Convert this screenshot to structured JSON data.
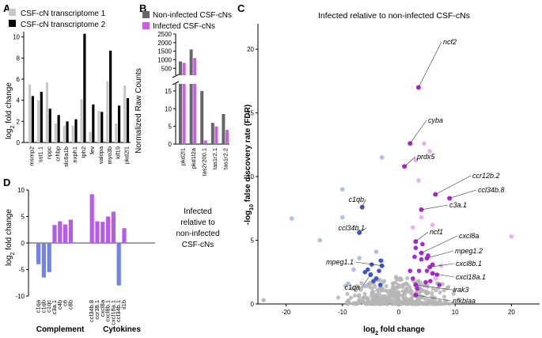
{
  "panels": {
    "A": {
      "letter": "A",
      "ylabel_prefix": "log",
      "ylabel_sub": "2",
      "ylabel_suffix": " fold change",
      "yticks": [
        "0",
        "2",
        "4",
        "6",
        "8",
        "10"
      ],
      "legend": [
        "CSF-cN transcriptome 1",
        "CSF-cN transcriptome 2"
      ],
      "colors": {
        "t1": "#c8c8c8",
        "t2": "#000000"
      }
    },
    "B": {
      "letter": "B",
      "ylabel": "Normalized Raw Counts",
      "yticks_top": [
        "500",
        "1000",
        "1500",
        "2000",
        "2500"
      ],
      "yticks_bottom": [
        "0",
        "5",
        "10",
        "15"
      ],
      "legend": [
        "Non-infected CSF-cNs",
        "Infected CSF-cNs"
      ],
      "colors": {
        "non": "#666666",
        "inf": "#c85fe0"
      }
    },
    "C": {
      "letter": "C",
      "title": "Infected relative to non-infected CSF-cNs",
      "xlabel_prefix": "log",
      "xlabel_sub": "2",
      "xlabel_suffix": " fold change",
      "ylabel_prefix": "-log",
      "ylabel_sub": "10",
      "ylabel_suffix": " false discovery rate (FDR)",
      "xticks": [
        "-20",
        "-10",
        "0",
        "10",
        "20"
      ],
      "yticks": [
        "0",
        "5",
        "10",
        "15",
        "20"
      ],
      "labels": [
        "ncf2",
        "cyba",
        "prdx5",
        "ccr12b.2",
        "ccl34b.8",
        "c1qb",
        "c3a.1",
        "ncf1",
        "ccl34b.1",
        "cxcl8a",
        "mpeg1.2",
        "mpeg1.1",
        "cxcl8b.1",
        "cxcl18a.1",
        "c1qa",
        "irak3",
        "nfkbiaa"
      ],
      "colors": {
        "grey": "#b5b5b5",
        "light_blue": "#aebfee",
        "blue": "#3f56c7",
        "light_purple": "#e6b2f2",
        "purple": "#a829cd"
      }
    },
    "D": {
      "letter": "D",
      "ylabel_prefix": "log",
      "ylabel_sub": "2",
      "ylabel_suffix": " fold change",
      "yticks": [
        "-10",
        "-5",
        "0",
        "5",
        "10"
      ],
      "side_label": [
        "Infected",
        "relative to",
        "non-infected",
        "CSF-cNs"
      ],
      "group_labels": [
        "Complement",
        "Cytokines"
      ],
      "colors": {
        "pos": "#b65de8",
        "neg": "#7283e6"
      }
    }
  },
  "chart_data": [
    {
      "type": "bar",
      "panel": "A",
      "categories": [
        "msmp2",
        "sst1.1",
        "nppc",
        "crhbp",
        "slc6a1b",
        "nxph1",
        "tph2",
        "fev",
        "valopa",
        "myo3b",
        "kif19",
        "pkd2l1"
      ],
      "series": [
        {
          "name": "CSF-cN transcriptome 1",
          "values": [
            5.5,
            4.0,
            5.7,
            1.8,
            1.6,
            1.6,
            4.1,
            1.0,
            3.0,
            5.8,
            1.8,
            5.4
          ]
        },
        {
          "name": "CSF-cN transcriptome 2",
          "values": [
            4.4,
            4.8,
            3.2,
            2.6,
            2.0,
            2.2,
            10.3,
            3.6,
            2.9,
            8.7,
            3.5,
            4.2
          ]
        }
      ],
      "ylim": [
        0,
        10.5
      ]
    },
    {
      "type": "bar",
      "panel": "B",
      "categories": [
        "pkd2l1",
        "pkd1l2a",
        "tas2r200.1",
        "tas1r2.1",
        "tas1r2.2"
      ],
      "series": [
        {
          "name": "Non-infected CSF-cNs",
          "values": [
            900,
            1600,
            15,
            6,
            8.5
          ]
        },
        {
          "name": "Infected CSF-cNs",
          "values": [
            820,
            1100,
            1,
            5,
            4
          ]
        }
      ],
      "y_axis_break": [
        17,
        100
      ],
      "ylim_top": [
        100,
        2500
      ],
      "ylim_bottom": [
        0,
        17
      ]
    },
    {
      "type": "scatter",
      "panel": "C",
      "xlim": [
        -25,
        25
      ],
      "ylim": [
        0,
        22
      ],
      "labeled_points": [
        {
          "label": "ncf2",
          "x": 3.5,
          "y": 17.0
        },
        {
          "label": "cyba",
          "x": 2.0,
          "y": 12.6
        },
        {
          "label": "prdx5",
          "x": 1.0,
          "y": 10.8
        },
        {
          "label": "ccr12b.2",
          "x": 6.5,
          "y": 8.6
        },
        {
          "label": "ccl34b.8",
          "x": 9.0,
          "y": 8.3
        },
        {
          "label": "c1qb",
          "x": -6.5,
          "y": 7.6
        },
        {
          "label": "c3a.1",
          "x": 4.0,
          "y": 7.4
        },
        {
          "label": "ncf1",
          "x": 3.0,
          "y": 4.9
        },
        {
          "label": "ccl34b.1",
          "x": -7.0,
          "y": 5.6
        },
        {
          "label": "cxcl8a",
          "x": 4.0,
          "y": 4.0
        },
        {
          "label": "mpeg1.2",
          "x": 5.0,
          "y": 3.6
        },
        {
          "label": "mpeg1.1",
          "x": -3.0,
          "y": 3.0
        },
        {
          "label": "cxcl8b.1",
          "x": 5.5,
          "y": 2.9
        },
        {
          "label": "cxcl18a.1",
          "x": 6.0,
          "y": 2.4
        },
        {
          "label": "c1qa",
          "x": -5.0,
          "y": 2.3
        },
        {
          "label": "irak3",
          "x": 3.0,
          "y": 1.5
        },
        {
          "label": "nfkbiaa",
          "x": 3.0,
          "y": 0.7
        }
      ],
      "other_points": {
        "light_blue": [
          [
            -19,
            6.7
          ],
          [
            -14,
            5.0
          ],
          [
            -10,
            6.8
          ],
          [
            -8,
            2.7
          ],
          [
            -7,
            3.6
          ],
          [
            -4,
            4.1
          ],
          [
            -3,
            3.4
          ],
          [
            -10,
            9.0
          ],
          [
            -9,
            1.6
          ],
          [
            -3,
            11.5
          ],
          [
            -6,
            1.4
          ]
        ],
        "blue": [
          [
            -6,
            2.5
          ],
          [
            -5,
            2.3
          ],
          [
            -4,
            2.0
          ],
          [
            -4.5,
            1.8
          ],
          [
            -3.5,
            2.6
          ],
          [
            -5.5,
            2.7
          ],
          [
            -3.2,
            3.4
          ],
          [
            -4.8,
            3.1
          ],
          [
            -3.3,
            1.5
          ]
        ],
        "light_purple": [
          [
            3.5,
            9.7
          ],
          [
            5.5,
            12.0
          ],
          [
            4.5,
            12.6
          ],
          [
            4.0,
            6.8
          ],
          [
            6.0,
            6.2
          ],
          [
            20,
            5.3
          ],
          [
            7.5,
            3.0
          ],
          [
            3.0,
            11.3
          ],
          [
            6.5,
            2.0
          ],
          [
            2.5,
            6.0
          ]
        ],
        "purple": [
          [
            3.0,
            4.4
          ],
          [
            4.0,
            3.5
          ],
          [
            5.0,
            2.6
          ],
          [
            2.5,
            2.0
          ],
          [
            6.0,
            3.1
          ],
          [
            4.8,
            1.7
          ],
          [
            3.6,
            2.6
          ],
          [
            5.6,
            1.8
          ],
          [
            2.8,
            3.7
          ],
          [
            4.2,
            4.7
          ],
          [
            6.8,
            2.3
          ],
          [
            3.3,
            1.2
          ],
          [
            5.2,
            3.8
          ],
          [
            2.0,
            2.6
          ],
          [
            7.2,
            1.5
          ]
        ]
      }
    },
    {
      "type": "bar",
      "panel": "D",
      "groups": [
        {
          "name": "Complement",
          "categories": [
            "c1qa",
            "c1qb",
            "c1qc",
            "c3a.1",
            "c4b",
            "c6",
            "c8b"
          ],
          "values": [
            -4.0,
            -6.5,
            -5.5,
            3.4,
            4.1,
            3.5,
            4.4
          ]
        },
        {
          "name": "Cytokines",
          "categories": [
            "ccl34b.8",
            "ccr38.1",
            "cxcl8a",
            "cxcl8b.1",
            "cxcl18a.1",
            "ccl34b.1",
            "il1b"
          ],
          "values": [
            9.2,
            4.1,
            4.0,
            5.0,
            5.9,
            -8.0,
            2.8
          ]
        }
      ],
      "ylim": [
        -10,
        10
      ]
    }
  ]
}
